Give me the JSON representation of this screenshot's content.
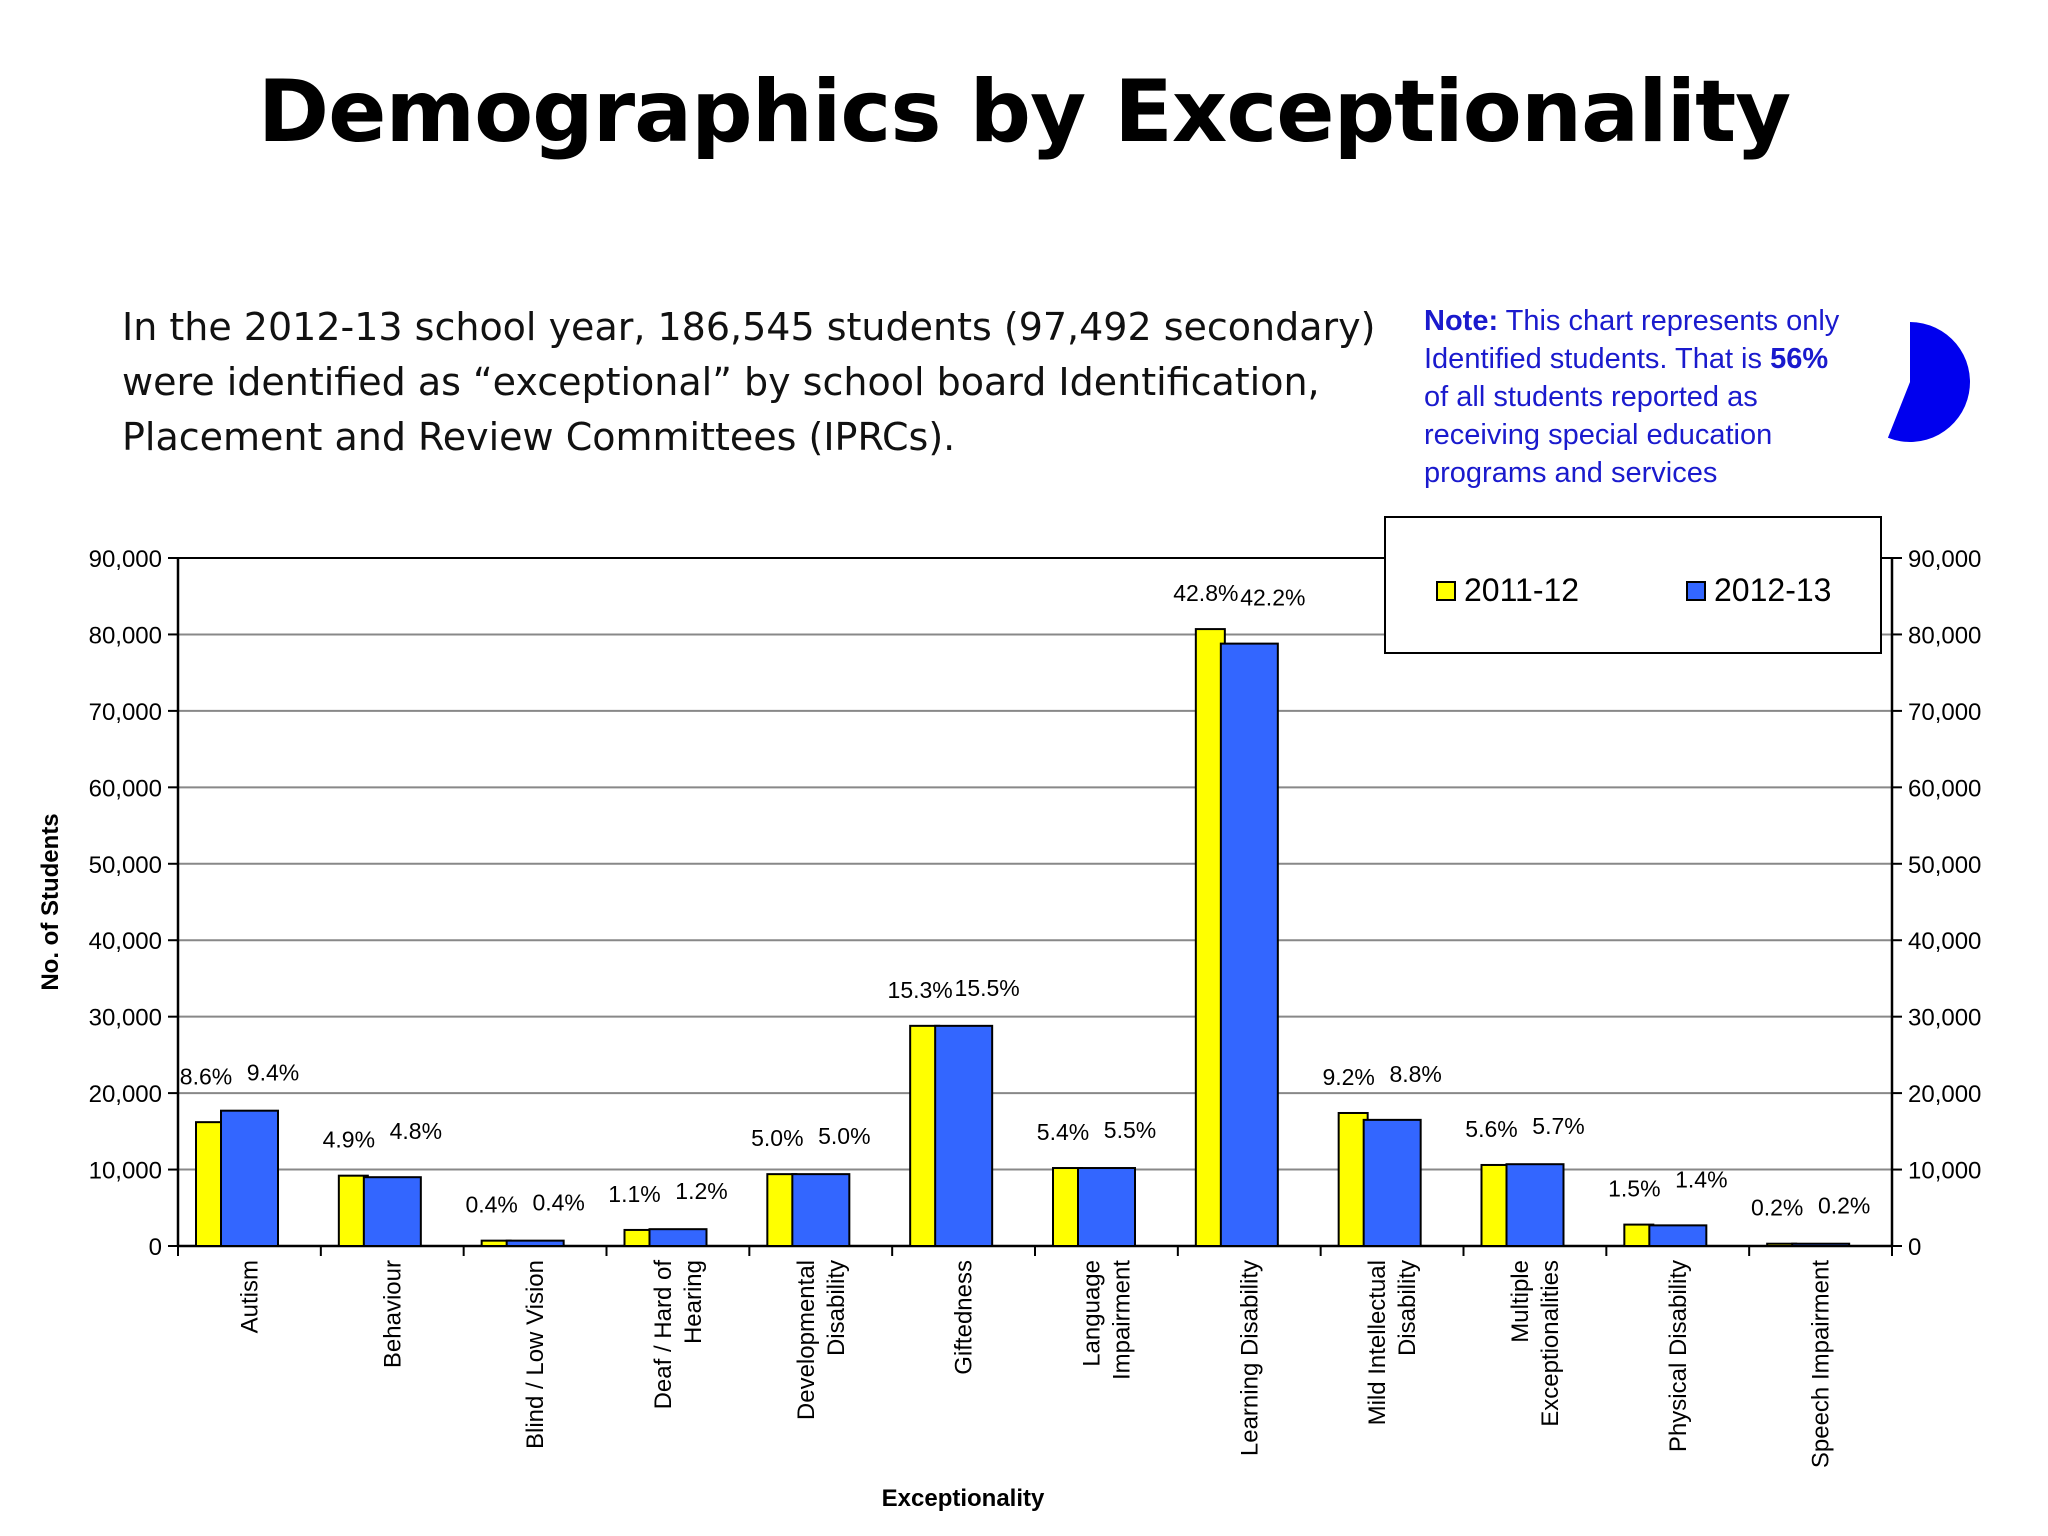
{
  "slide": {
    "title": "Demographics by Exceptionality",
    "intro_lines": [
      "In the 2012-13 school year, 186,545 students (97,492 secondary)",
      "were identified as “exceptional” by school board Identification,",
      "Placement and Review Committees (IPRCs)."
    ],
    "note": {
      "label": "Note:",
      "line1_rest": " This chart represents only",
      "line2_before": "Identified students.  That is ",
      "line2_bold": "56%",
      "line3": "of all students reported as",
      "line4": "receiving special education",
      "line5": "programs and services",
      "pie_fraction": 0.56,
      "color": "#1a1acd",
      "pie_color": "#0000ee"
    }
  },
  "chart_data": {
    "type": "bar",
    "title": "",
    "xlabel": "Exceptionality",
    "ylabel": "No. of Students",
    "ylim": [
      0,
      90000
    ],
    "yticks": [
      0,
      10000,
      20000,
      30000,
      40000,
      50000,
      60000,
      70000,
      80000,
      90000
    ],
    "ytick_labels": [
      "0",
      "10,000",
      "20,000",
      "30,000",
      "40,000",
      "50,000",
      "60,000",
      "70,000",
      "80,000",
      "90,000"
    ],
    "secondary_axis": true,
    "grid": true,
    "legend_position": "top-right",
    "categories": [
      [
        "Autism"
      ],
      [
        "Behaviour"
      ],
      [
        "Blind / Low Vision"
      ],
      [
        "Deaf / Hard of",
        "Hearing"
      ],
      [
        "Developmental",
        "Disability"
      ],
      [
        "Giftedness"
      ],
      [
        "Language",
        "Impairment"
      ],
      [
        "Learning Disability"
      ],
      [
        "Mild Intellectual",
        "Disability"
      ],
      [
        "Multiple",
        "Exceptionalities"
      ],
      [
        "Physical Disability"
      ],
      [
        "Speech Impairment"
      ]
    ],
    "series": [
      {
        "name": "2011-12",
        "color": "#ffff00",
        "values": [
          16200,
          9200,
          700,
          2100,
          9400,
          28800,
          10200,
          80700,
          17400,
          10600,
          2800,
          300
        ],
        "labels": [
          "8.6%",
          "4.9%",
          "0.4%",
          "1.1%",
          "5.0%",
          "15.3%",
          "5.4%",
          "42.8%",
          "9.2%",
          "5.6%",
          "1.5%",
          "0.2%"
        ]
      },
      {
        "name": "2012-13",
        "color": "#3366ff",
        "values": [
          17700,
          9000,
          700,
          2200,
          9400,
          28800,
          10200,
          78800,
          16500,
          10700,
          2700,
          300
        ],
        "labels": [
          "9.4%",
          "4.8%",
          "0.4%",
          "1.2%",
          "5.0%",
          "15.5%",
          "5.5%",
          "42.2%",
          "8.8%",
          "5.7%",
          "1.4%",
          "0.2%"
        ]
      }
    ]
  }
}
